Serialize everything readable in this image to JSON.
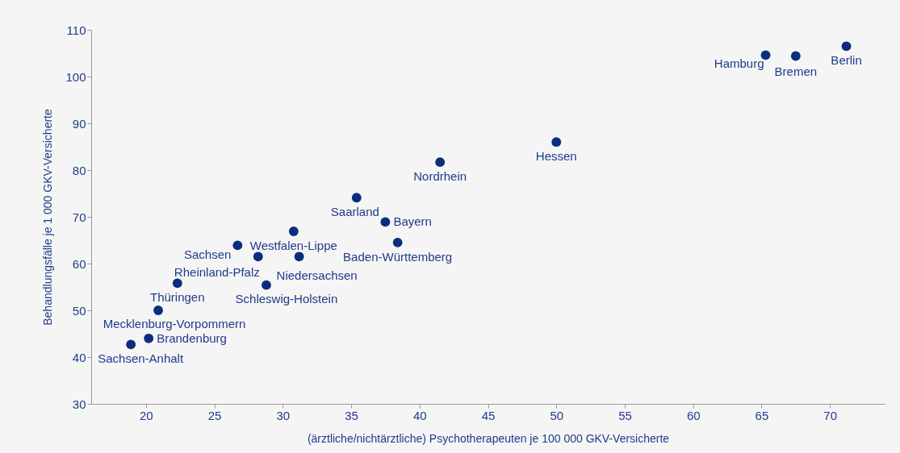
{
  "chart_data": {
    "type": "scatter",
    "xlabel": "(ärztliche/nichtärztliche) Psychotherapeuten je 100 000 GKV-Versicherte",
    "ylabel": "Behandlungsfälle je 1 000 GKV-Versicherte",
    "x": [
      71.2,
      65.3,
      67.5,
      50.0,
      41.5,
      35.4,
      37.5,
      38.4,
      30.8,
      31.2,
      28.8,
      28.2,
      26.7,
      22.3,
      20.9,
      20.2,
      18.9
    ],
    "values": [
      106.5,
      104.6,
      104.4,
      86.0,
      81.7,
      74.1,
      68.9,
      64.5,
      66.9,
      61.5,
      55.4,
      61.5,
      63.9,
      55.8,
      50.0,
      44.0,
      42.7
    ],
    "color": "#0a2d7d",
    "marker": "circle",
    "xlim": [
      16,
      74
    ],
    "ylim": [
      30,
      110
    ],
    "xticks": [
      20,
      25,
      30,
      35,
      40,
      45,
      50,
      55,
      60,
      65,
      70
    ],
    "yticks": [
      30,
      40,
      50,
      60,
      70,
      80,
      90,
      100,
      110
    ],
    "grid": false,
    "annotations": [
      {
        "text": "Berlin",
        "x": 71.2,
        "y": 106.5
      },
      {
        "text": "Hamburg",
        "x": 65.3,
        "y": 104.6
      },
      {
        "text": "Bremen",
        "x": 67.5,
        "y": 104.4
      },
      {
        "text": "Hessen",
        "x": 50.0,
        "y": 86.0
      },
      {
        "text": "Nordrhein",
        "x": 41.5,
        "y": 81.7
      },
      {
        "text": "Saarland",
        "x": 35.4,
        "y": 74.1
      },
      {
        "text": "Bayern",
        "x": 37.5,
        "y": 68.9
      },
      {
        "text": "Baden-Württemberg",
        "x": 38.4,
        "y": 64.5
      },
      {
        "text": "Westfalen-Lippe",
        "x": 30.8,
        "y": 66.9
      },
      {
        "text": "Niedersachsen",
        "x": 31.2,
        "y": 61.5
      },
      {
        "text": "Schleswig-Holstein",
        "x": 28.8,
        "y": 55.4
      },
      {
        "text": "Rheinland-Pfalz",
        "x": 28.2,
        "y": 61.5
      },
      {
        "text": "Sachsen",
        "x": 26.7,
        "y": 63.9
      },
      {
        "text": "Thüringen",
        "x": 22.3,
        "y": 55.8
      },
      {
        "text": "Mecklenburg-Vorpommern",
        "x": 20.9,
        "y": 50.0
      },
      {
        "text": "Brandenburg",
        "x": 20.2,
        "y": 44.0
      },
      {
        "text": "Sachsen-Anhalt",
        "x": 18.9,
        "y": 42.7
      }
    ]
  }
}
